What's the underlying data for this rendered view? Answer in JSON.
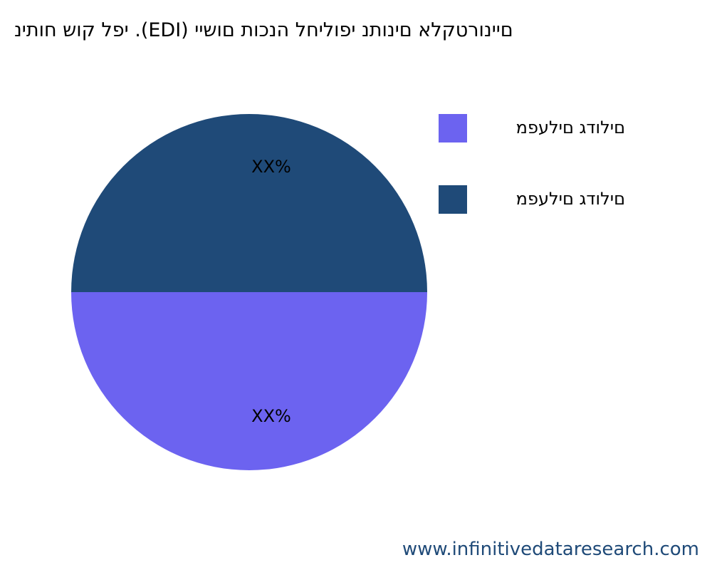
{
  "chart_data": {
    "type": "pie",
    "title": "יפל קוש חותינ .(EDI) םיינורטקלא םינותנ יפוליחל הנכות םושיי",
    "categories": [
      "םילודג םילעפמ",
      "םילודג םילעפמ"
    ],
    "values": [
      50,
      50
    ],
    "value_labels": [
      "XX%",
      "XX%"
    ],
    "colors": [
      "#6c63f0",
      "#1f4a78"
    ],
    "legend": "upper right",
    "source": "www.infinitivedataresearch.com"
  }
}
